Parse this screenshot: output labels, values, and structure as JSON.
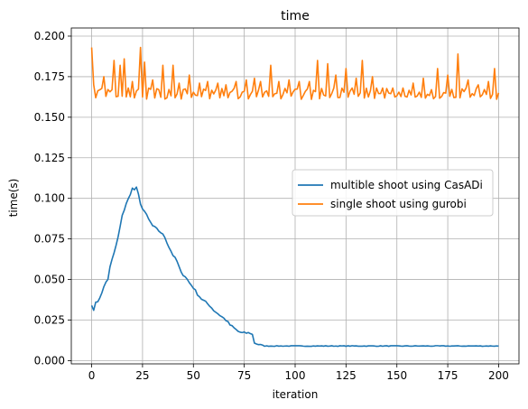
{
  "chart_data": {
    "type": "line",
    "title": "time",
    "xlabel": "iteration",
    "ylabel": "time(s)",
    "xlim": [
      -10,
      210
    ],
    "ylim": [
      -0.002,
      0.205
    ],
    "xticks": [
      0,
      25,
      50,
      75,
      100,
      125,
      150,
      175,
      200
    ],
    "xtick_labels": [
      "0",
      "25",
      "50",
      "75",
      "100",
      "125",
      "150",
      "175",
      "200"
    ],
    "yticks": [
      0.0,
      0.025,
      0.05,
      0.075,
      0.1,
      0.125,
      0.15,
      0.175,
      0.2
    ],
    "ytick_labels": [
      "0.000",
      "0.025",
      "0.050",
      "0.075",
      "0.100",
      "0.125",
      "0.150",
      "0.175",
      "0.200"
    ],
    "grid": true,
    "legend_position": "center-right",
    "series": [
      {
        "name": "multible shoot using CasADi",
        "color": "#1f77b4",
        "keypoints": [
          [
            0,
            0.034
          ],
          [
            1,
            0.031
          ],
          [
            2,
            0.036
          ],
          [
            4,
            0.038
          ],
          [
            6,
            0.046
          ],
          [
            8,
            0.05
          ],
          [
            9,
            0.058
          ],
          [
            11,
            0.066
          ],
          [
            13,
            0.076
          ],
          [
            15,
            0.089
          ],
          [
            17,
            0.097
          ],
          [
            19,
            0.102
          ],
          [
            20,
            0.107
          ],
          [
            21,
            0.105
          ],
          [
            22,
            0.107
          ],
          [
            23,
            0.102
          ],
          [
            24,
            0.096
          ],
          [
            26,
            0.092
          ],
          [
            28,
            0.087
          ],
          [
            30,
            0.083
          ],
          [
            32,
            0.081
          ],
          [
            34,
            0.079
          ],
          [
            36,
            0.076
          ],
          [
            38,
            0.07
          ],
          [
            40,
            0.065
          ],
          [
            42,
            0.061
          ],
          [
            44,
            0.054
          ],
          [
            46,
            0.052
          ],
          [
            48,
            0.048
          ],
          [
            50,
            0.045
          ],
          [
            52,
            0.041
          ],
          [
            54,
            0.038
          ],
          [
            56,
            0.036
          ],
          [
            58,
            0.034
          ],
          [
            60,
            0.031
          ],
          [
            62,
            0.029
          ],
          [
            64,
            0.027
          ],
          [
            66,
            0.025
          ],
          [
            68,
            0.022
          ],
          [
            70,
            0.02
          ],
          [
            72,
            0.018
          ],
          [
            74,
            0.017
          ],
          [
            78,
            0.017
          ],
          [
            79,
            0.016
          ],
          [
            80,
            0.011
          ],
          [
            82,
            0.01
          ],
          [
            84,
            0.009
          ],
          [
            200,
            0.009
          ]
        ]
      },
      {
        "name": "single shoot using gurobi",
        "color": "#ff7f0e",
        "base": 0.166,
        "low": 0.161,
        "first": [
          0,
          0.193
        ],
        "peaks": [
          [
            6,
            0.175
          ],
          [
            11,
            0.185
          ],
          [
            14,
            0.182
          ],
          [
            16,
            0.186
          ],
          [
            18,
            0.168
          ],
          [
            20,
            0.172
          ],
          [
            24,
            0.193
          ],
          [
            26,
            0.184
          ],
          [
            30,
            0.173
          ],
          [
            33,
            0.167
          ],
          [
            35,
            0.182
          ],
          [
            40,
            0.182
          ],
          [
            43,
            0.171
          ],
          [
            48,
            0.176
          ],
          [
            53,
            0.171
          ],
          [
            57,
            0.172
          ],
          [
            62,
            0.171
          ],
          [
            66,
            0.17
          ],
          [
            71,
            0.172
          ],
          [
            76,
            0.173
          ],
          [
            80,
            0.174
          ],
          [
            83,
            0.172
          ],
          [
            88,
            0.182
          ],
          [
            92,
            0.172
          ],
          [
            97,
            0.173
          ],
          [
            102,
            0.172
          ],
          [
            107,
            0.172
          ],
          [
            111,
            0.185
          ],
          [
            116,
            0.183
          ],
          [
            120,
            0.176
          ],
          [
            125,
            0.18
          ],
          [
            130,
            0.174
          ],
          [
            133,
            0.185
          ],
          [
            138,
            0.175
          ],
          [
            143,
            0.168
          ],
          [
            148,
            0.168
          ],
          [
            153,
            0.168
          ],
          [
            158,
            0.171
          ],
          [
            163,
            0.174
          ],
          [
            167,
            0.167
          ],
          [
            170,
            0.18
          ],
          [
            175,
            0.176
          ],
          [
            180,
            0.189
          ],
          [
            185,
            0.173
          ],
          [
            190,
            0.17
          ],
          [
            195,
            0.172
          ],
          [
            198,
            0.18
          ],
          [
            200,
            0.172
          ]
        ],
        "end": [
          200,
          0.165
        ]
      }
    ]
  }
}
